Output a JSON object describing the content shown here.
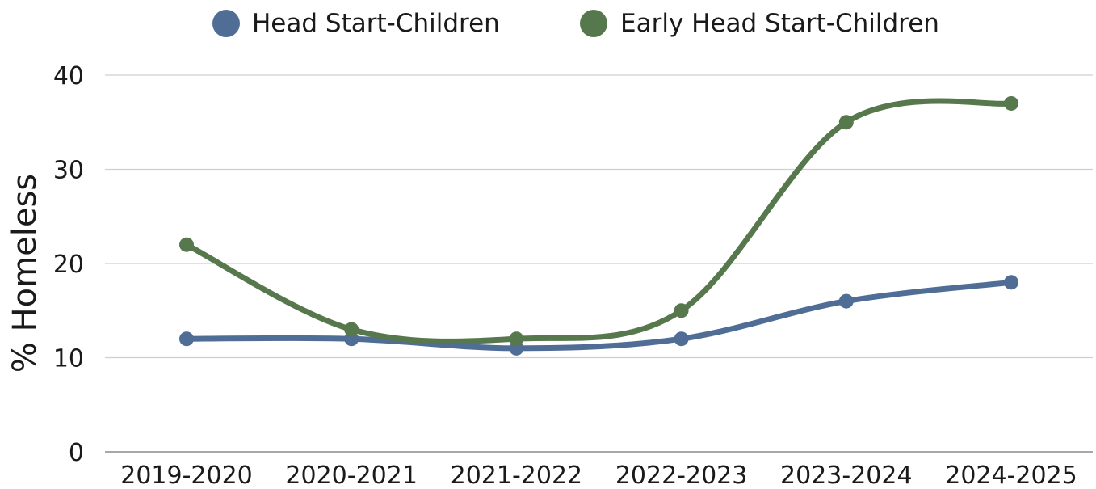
{
  "chart_data": {
    "type": "line",
    "title": "",
    "xlabel": "",
    "ylabel": "% Homeless",
    "categories": [
      "2019-2020",
      "2020-2021",
      "2021-2022",
      "2022-2023",
      "2023-2024",
      "2024-2025"
    ],
    "ylim": [
      0,
      40
    ],
    "yticks": [
      0,
      10,
      20,
      30,
      40
    ],
    "grid": true,
    "smooth": true,
    "legend_position": "top-center",
    "series": [
      {
        "name": "Head Start-Children",
        "color": "#4f6d95",
        "values": [
          12,
          12,
          11,
          12,
          16,
          18
        ]
      },
      {
        "name": "Early Head Start-Children",
        "color": "#56784c",
        "values": [
          22,
          13,
          12,
          15,
          35,
          37
        ]
      }
    ]
  }
}
